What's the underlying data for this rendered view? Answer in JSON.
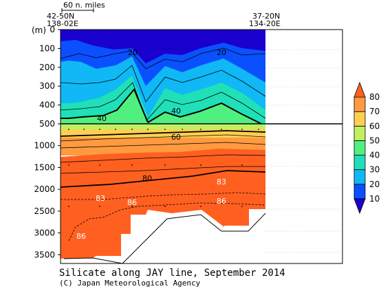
{
  "chart_data": {
    "type": "heatmap",
    "title": "Silicate along JAY line, September 2014",
    "credit": "(C) Japan Meteorological Agency",
    "units_label": "(m)",
    "scale_bar_label": "60 n. miles",
    "start_station": {
      "lat": "42-50N",
      "lon": "138-02E"
    },
    "end_station": {
      "lat": "37-20N",
      "lon": "134-20E"
    },
    "upper_depth_ticks": [
      "0",
      "100",
      "200",
      "300",
      "400",
      "500"
    ],
    "lower_depth_ticks": [
      "1000",
      "1500",
      "2000",
      "2500",
      "3000",
      "3500"
    ],
    "colorbar": {
      "levels": [
        10,
        20,
        30,
        40,
        50,
        60,
        70,
        80
      ],
      "colors": [
        "#1a00cc",
        "#0a50ff",
        "#10b8f5",
        "#20e0b8",
        "#50f080",
        "#c0f060",
        "#ffd050",
        "#ff9a40",
        "#ff6020"
      ]
    },
    "contour_labels": [
      {
        "text": "20"
      },
      {
        "text": "20"
      },
      {
        "text": "40"
      },
      {
        "text": "40"
      },
      {
        "text": "60"
      },
      {
        "text": "80"
      },
      {
        "text": "83"
      },
      {
        "text": "83"
      },
      {
        "text": "86"
      },
      {
        "text": "86"
      },
      {
        "text": "86"
      }
    ]
  }
}
